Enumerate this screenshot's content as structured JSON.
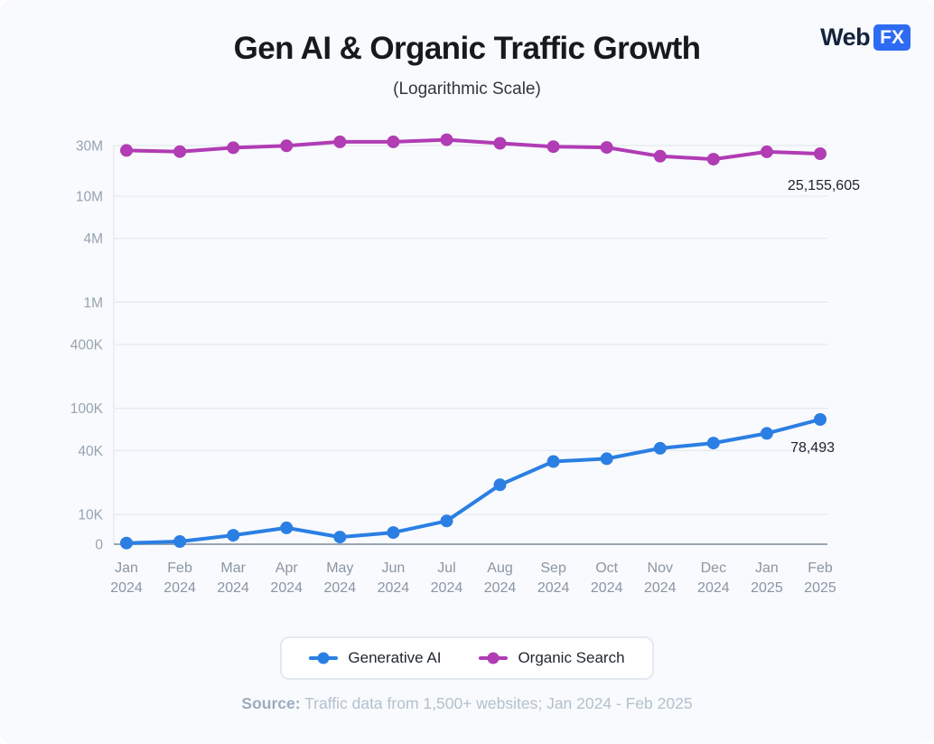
{
  "logo": {
    "prefix": "Web",
    "suffix": "FX"
  },
  "footer": {
    "source_label": "Source:",
    "text": "Traffic data from 1,500+ websites;  Jan 2024 - Feb 2025"
  },
  "chart_data": {
    "type": "line",
    "title": "Gen AI & Organic Traffic Growth",
    "subtitle": "(Logarithmic Scale)",
    "scale": "logarithmic",
    "grid": true,
    "legend_position": "bottom",
    "xlabel": "",
    "ylabel": "",
    "ylim": [
      0,
      40000000
    ],
    "categories": [
      "Jan 2024",
      "Feb 2024",
      "Mar 2024",
      "Apr 2024",
      "May 2024",
      "Jun 2024",
      "Jul 2024",
      "Aug 2024",
      "Sep 2024",
      "Oct 2024",
      "Nov 2024",
      "Dec 2024",
      "Jan 2025",
      "Feb 2025"
    ],
    "yticks": [
      {
        "value": 30000000,
        "label": "30M"
      },
      {
        "value": 10000000,
        "label": "10M"
      },
      {
        "value": 4000000,
        "label": "4M"
      },
      {
        "value": 1000000,
        "label": "1M"
      },
      {
        "value": 400000,
        "label": "400K"
      },
      {
        "value": 100000,
        "label": "100K"
      },
      {
        "value": 40000,
        "label": "40K"
      },
      {
        "value": 10000,
        "label": "10K"
      },
      {
        "value": 0,
        "label": "0"
      }
    ],
    "series": [
      {
        "name": "Generative AI",
        "color": "#2b7fe3",
        "values": [
          400,
          900,
          3000,
          5500,
          2400,
          3900,
          7800,
          19000,
          31500,
          33500,
          42000,
          47000,
          58000,
          78493
        ],
        "end_label": "78,493"
      },
      {
        "name": "Organic Search",
        "color": "#b13cb4",
        "values": [
          27000000,
          26300000,
          28600000,
          29800000,
          32500000,
          32500000,
          34000000,
          31500000,
          29300000,
          28800000,
          23800000,
          22300000,
          26200000,
          25155605
        ],
        "end_label": "25,155,605"
      }
    ]
  }
}
